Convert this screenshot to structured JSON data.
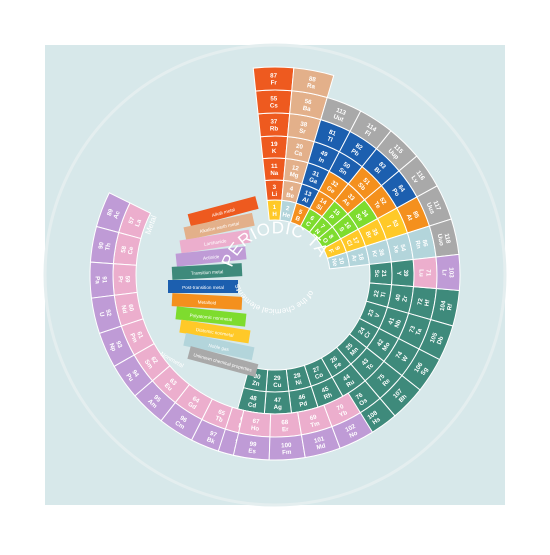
{
  "title": "PERIODIC TABLE",
  "subtitle": "of the chemical elements",
  "colors": {
    "background": "#d7e8ea",
    "track": "#e4eeef",
    "alkali": "#ee5a1f",
    "alkaline_earth": "#e3b08a",
    "lanthanide": "#ecaecd",
    "actinide": "#bf9bd6",
    "transition": "#3e8a7b",
    "post_transition": "#1c5faf",
    "metalloid": "#f4901d",
    "nonmetal": "#7edc2e",
    "halogen": "#ffc928",
    "noble_gas": "#b3d5db",
    "unknown": "#a9a9a9",
    "hydrogen": "#ffc928"
  },
  "legend": {
    "metal_label": "Metal",
    "nonmetal_label": "Nonmetal",
    "items": [
      {
        "label": "Alkali metal",
        "cat": "alkali"
      },
      {
        "label": "Alkaline earth metal",
        "cat": "alkaline_earth"
      },
      {
        "label": "Lanthanide",
        "cat": "lanthanide"
      },
      {
        "label": "Actinide",
        "cat": "actinide"
      },
      {
        "label": "Transition metal",
        "cat": "transition"
      },
      {
        "label": "Post-transition metal",
        "cat": "post_transition"
      },
      {
        "label": "Metalloid",
        "cat": "metalloid"
      },
      {
        "label": "Polyatomic nonmetal",
        "cat": "nonmetal"
      },
      {
        "label": "Diatomic nonmetal",
        "cat": "halogen"
      },
      {
        "label": "Noble gas",
        "cat": "noble_gas"
      },
      {
        "label": "Unknown chemical properties",
        "cat": "unknown"
      }
    ]
  },
  "elements": [
    {
      "n": 1,
      "s": "H",
      "cat": "hydrogen",
      "ring": 0,
      "slot": 0
    },
    {
      "n": 2,
      "s": "He",
      "cat": "noble_gas",
      "ring": 0,
      "slot": 1
    },
    {
      "n": 5,
      "s": "B",
      "cat": "metalloid",
      "ring": 0,
      "slot": 2
    },
    {
      "n": 6,
      "s": "C",
      "cat": "nonmetal",
      "ring": 0,
      "slot": 3
    },
    {
      "n": 7,
      "s": "N",
      "cat": "nonmetal",
      "ring": 0,
      "slot": 4
    },
    {
      "n": 8,
      "s": "O",
      "cat": "nonmetal",
      "ring": 0,
      "slot": 5
    },
    {
      "n": 9,
      "s": "F",
      "cat": "halogen",
      "ring": 0,
      "slot": 6
    },
    {
      "n": 10,
      "s": "Ne",
      "cat": "noble_gas",
      "ring": 0,
      "slot": 7
    },
    {
      "n": 3,
      "s": "Li",
      "cat": "alkali",
      "ring": 1,
      "slot": 0
    },
    {
      "n": 4,
      "s": "Be",
      "cat": "alkaline_earth",
      "ring": 1,
      "slot": 1
    },
    {
      "n": 13,
      "s": "Al",
      "cat": "post_transition",
      "ring": 1,
      "slot": 2
    },
    {
      "n": 14,
      "s": "Si",
      "cat": "metalloid",
      "ring": 1,
      "slot": 3
    },
    {
      "n": 15,
      "s": "P",
      "cat": "nonmetal",
      "ring": 1,
      "slot": 4
    },
    {
      "n": 16,
      "s": "S",
      "cat": "nonmetal",
      "ring": 1,
      "slot": 5
    },
    {
      "n": 17,
      "s": "Cl",
      "cat": "halogen",
      "ring": 1,
      "slot": 6
    },
    {
      "n": 18,
      "s": "Ar",
      "cat": "noble_gas",
      "ring": 1,
      "slot": 7
    },
    {
      "n": 11,
      "s": "Na",
      "cat": "alkali",
      "ring": 2,
      "slot": 0
    },
    {
      "n": 12,
      "s": "Mg",
      "cat": "alkaline_earth",
      "ring": 2,
      "slot": 1
    },
    {
      "n": 31,
      "s": "Ga",
      "cat": "post_transition",
      "ring": 2,
      "slot": 2
    },
    {
      "n": 32,
      "s": "Ge",
      "cat": "metalloid",
      "ring": 2,
      "slot": 3
    },
    {
      "n": 33,
      "s": "As",
      "cat": "metalloid",
      "ring": 2,
      "slot": 4
    },
    {
      "n": 34,
      "s": "Se",
      "cat": "nonmetal",
      "ring": 2,
      "slot": 5
    },
    {
      "n": 35,
      "s": "Br",
      "cat": "halogen",
      "ring": 2,
      "slot": 6
    },
    {
      "n": 36,
      "s": "Kr",
      "cat": "noble_gas",
      "ring": 2,
      "slot": 7
    },
    {
      "n": 19,
      "s": "K",
      "cat": "alkali",
      "ring": 3,
      "slot": 0
    },
    {
      "n": 20,
      "s": "Ca",
      "cat": "alkaline_earth",
      "ring": 3,
      "slot": 1
    },
    {
      "n": 49,
      "s": "In",
      "cat": "post_transition",
      "ring": 3,
      "slot": 2
    },
    {
      "n": 50,
      "s": "Sn",
      "cat": "post_transition",
      "ring": 3,
      "slot": 3
    },
    {
      "n": 51,
      "s": "Sb",
      "cat": "metalloid",
      "ring": 3,
      "slot": 4
    },
    {
      "n": 52,
      "s": "Te",
      "cat": "metalloid",
      "ring": 3,
      "slot": 5
    },
    {
      "n": 53,
      "s": "I",
      "cat": "halogen",
      "ring": 3,
      "slot": 6
    },
    {
      "n": 54,
      "s": "Xe",
      "cat": "noble_gas",
      "ring": 3,
      "slot": 7
    },
    {
      "n": 37,
      "s": "Rb",
      "cat": "alkali",
      "ring": 4,
      "slot": 0
    },
    {
      "n": 38,
      "s": "Sr",
      "cat": "alkaline_earth",
      "ring": 4,
      "slot": 1
    },
    {
      "n": 81,
      "s": "Tl",
      "cat": "post_transition",
      "ring": 4,
      "slot": 2
    },
    {
      "n": 82,
      "s": "Pb",
      "cat": "post_transition",
      "ring": 4,
      "slot": 3
    },
    {
      "n": 83,
      "s": "Bi",
      "cat": "post_transition",
      "ring": 4,
      "slot": 4
    },
    {
      "n": 84,
      "s": "Po",
      "cat": "post_transition",
      "ring": 4,
      "slot": 5
    },
    {
      "n": 85,
      "s": "At",
      "cat": "metalloid",
      "ring": 4,
      "slot": 6
    },
    {
      "n": 86,
      "s": "Rn",
      "cat": "noble_gas",
      "ring": 4,
      "slot": 7
    },
    {
      "n": 55,
      "s": "Cs",
      "cat": "alkali",
      "ring": 5,
      "slot": 0
    },
    {
      "n": 56,
      "s": "Ba",
      "cat": "alkaline_earth",
      "ring": 5,
      "slot": 1
    },
    {
      "n": 113,
      "s": "Uut",
      "cat": "unknown",
      "ring": 5,
      "slot": 2
    },
    {
      "n": 114,
      "s": "Fl",
      "cat": "unknown",
      "ring": 5,
      "slot": 3
    },
    {
      "n": 115,
      "s": "Uup",
      "cat": "unknown",
      "ring": 5,
      "slot": 4
    },
    {
      "n": 116,
      "s": "Lv",
      "cat": "unknown",
      "ring": 5,
      "slot": 5
    },
    {
      "n": 117,
      "s": "Uus",
      "cat": "unknown",
      "ring": 5,
      "slot": 6
    },
    {
      "n": 118,
      "s": "Uuo",
      "cat": "unknown",
      "ring": 5,
      "slot": 7
    },
    {
      "n": 87,
      "s": "Fr",
      "cat": "alkali",
      "ring": 6,
      "slot": 0
    },
    {
      "n": 88,
      "s": "Ra",
      "cat": "alkaline_earth",
      "ring": 6,
      "slot": 1
    },
    {
      "n": 21,
      "s": "Sc",
      "cat": "transition",
      "ring": 2,
      "slot": 8
    },
    {
      "n": 22,
      "s": "Ti",
      "cat": "transition",
      "ring": 2,
      "slot": 9
    },
    {
      "n": 23,
      "s": "V",
      "cat": "transition",
      "ring": 2,
      "slot": 10
    },
    {
      "n": 24,
      "s": "Cr",
      "cat": "transition",
      "ring": 2,
      "slot": 11
    },
    {
      "n": 25,
      "s": "Mn",
      "cat": "transition",
      "ring": 2,
      "slot": 12
    },
    {
      "n": 26,
      "s": "Fe",
      "cat": "transition",
      "ring": 2,
      "slot": 13
    },
    {
      "n": 27,
      "s": "Co",
      "cat": "transition",
      "ring": 2,
      "slot": 14
    },
    {
      "n": 28,
      "s": "Ni",
      "cat": "transition",
      "ring": 2,
      "slot": 15
    },
    {
      "n": 29,
      "s": "Cu",
      "cat": "transition",
      "ring": 2,
      "slot": 16
    },
    {
      "n": 30,
      "s": "Zn",
      "cat": "transition",
      "ring": 2,
      "slot": 17
    },
    {
      "n": 39,
      "s": "Y",
      "cat": "transition",
      "ring": 3,
      "slot": 8
    },
    {
      "n": 40,
      "s": "Zr",
      "cat": "transition",
      "ring": 3,
      "slot": 9
    },
    {
      "n": 41,
      "s": "Nb",
      "cat": "transition",
      "ring": 3,
      "slot": 10
    },
    {
      "n": 42,
      "s": "Mo",
      "cat": "transition",
      "ring": 3,
      "slot": 11
    },
    {
      "n": 43,
      "s": "Tc",
      "cat": "transition",
      "ring": 3,
      "slot": 12
    },
    {
      "n": 44,
      "s": "Ru",
      "cat": "transition",
      "ring": 3,
      "slot": 13
    },
    {
      "n": 45,
      "s": "Rh",
      "cat": "transition",
      "ring": 3,
      "slot": 14
    },
    {
      "n": 46,
      "s": "Pd",
      "cat": "transition",
      "ring": 3,
      "slot": 15
    },
    {
      "n": 47,
      "s": "Ag",
      "cat": "transition",
      "ring": 3,
      "slot": 16
    },
    {
      "n": 48,
      "s": "Cd",
      "cat": "transition",
      "ring": 3,
      "slot": 17
    },
    {
      "n": 72,
      "s": "Hf",
      "cat": "transition",
      "ring": 4,
      "slot": 9
    },
    {
      "n": 73,
      "s": "Ta",
      "cat": "transition",
      "ring": 4,
      "slot": 10
    },
    {
      "n": 74,
      "s": "W",
      "cat": "transition",
      "ring": 4,
      "slot": 11
    },
    {
      "n": 75,
      "s": "Re",
      "cat": "transition",
      "ring": 4,
      "slot": 12
    },
    {
      "n": 76,
      "s": "Os",
      "cat": "transition",
      "ring": 4,
      "slot": 13
    },
    {
      "n": 77,
      "s": "Ir",
      "cat": "transition",
      "ring": 4,
      "slot": 14
    },
    {
      "n": 78,
      "s": "Pt",
      "cat": "transition",
      "ring": 4,
      "slot": 15
    },
    {
      "n": 79,
      "s": "Au",
      "cat": "transition",
      "ring": 4,
      "slot": 16
    },
    {
      "n": 80,
      "s": "Hg",
      "cat": "transition",
      "ring": 4,
      "slot": 17
    },
    {
      "n": 71,
      "s": "Lu",
      "cat": "lanthanide",
      "ring": 4,
      "slot": 8
    },
    {
      "n": 104,
      "s": "Rf",
      "cat": "transition",
      "ring": 5,
      "slot": 9
    },
    {
      "n": 105,
      "s": "Db",
      "cat": "transition",
      "ring": 5,
      "slot": 10
    },
    {
      "n": 106,
      "s": "Sg",
      "cat": "transition",
      "ring": 5,
      "slot": 11
    },
    {
      "n": 107,
      "s": "Bh",
      "cat": "transition",
      "ring": 5,
      "slot": 12
    },
    {
      "n": 108,
      "s": "Hs",
      "cat": "transition",
      "ring": 5,
      "slot": 13
    },
    {
      "n": 109,
      "s": "Mt",
      "cat": "unknown",
      "ring": 5,
      "slot": 14
    },
    {
      "n": 110,
      "s": "Ds",
      "cat": "unknown",
      "ring": 5,
      "slot": 15
    },
    {
      "n": 111,
      "s": "Rg",
      "cat": "unknown",
      "ring": 5,
      "slot": 16
    },
    {
      "n": 112,
      "s": "Cn",
      "cat": "transition",
      "ring": 5,
      "slot": 17
    },
    {
      "n": 103,
      "s": "Lr",
      "cat": "actinide",
      "ring": 5,
      "slot": 8
    },
    {
      "n": 57,
      "s": "La",
      "cat": "lanthanide",
      "ring": 4,
      "slot": 26
    },
    {
      "n": 58,
      "s": "Ce",
      "cat": "lanthanide",
      "ring": 4,
      "slot": 25
    },
    {
      "n": 59,
      "s": "Pr",
      "cat": "lanthanide",
      "ring": 4,
      "slot": 24
    },
    {
      "n": 60,
      "s": "Nd",
      "cat": "lanthanide",
      "ring": 4,
      "slot": 23
    },
    {
      "n": 61,
      "s": "Pm",
      "cat": "lanthanide",
      "ring": 4,
      "slot": 22
    },
    {
      "n": 62,
      "s": "Sm",
      "cat": "lanthanide",
      "ring": 4,
      "slot": 21
    },
    {
      "n": 63,
      "s": "Eu",
      "cat": "lanthanide",
      "ring": 4,
      "slot": 20
    },
    {
      "n": 64,
      "s": "Gd",
      "cat": "lanthanide",
      "ring": 4,
      "slot": 19
    },
    {
      "n": 65,
      "s": "Tb",
      "cat": "lanthanide",
      "ring": 4,
      "slot": 18
    },
    {
      "n": 66,
      "s": "Dy",
      "cat": "lanthanide",
      "ring": 4,
      "slot": 17.2
    },
    {
      "n": 89,
      "s": "Ac",
      "cat": "actinide",
      "ring": 5,
      "slot": 26
    },
    {
      "n": 90,
      "s": "Th",
      "cat": "actinide",
      "ring": 5,
      "slot": 25
    },
    {
      "n": 91,
      "s": "Pa",
      "cat": "actinide",
      "ring": 5,
      "slot": 24
    },
    {
      "n": 92,
      "s": "U",
      "cat": "actinide",
      "ring": 5,
      "slot": 23
    },
    {
      "n": 93,
      "s": "Np",
      "cat": "actinide",
      "ring": 5,
      "slot": 22
    },
    {
      "n": 94,
      "s": "Pu",
      "cat": "actinide",
      "ring": 5,
      "slot": 21
    },
    {
      "n": 95,
      "s": "Am",
      "cat": "actinide",
      "ring": 5,
      "slot": 20
    },
    {
      "n": 96,
      "s": "Cm",
      "cat": "actinide",
      "ring": 5,
      "slot": 19
    },
    {
      "n": 97,
      "s": "Bk",
      "cat": "actinide",
      "ring": 5,
      "slot": 18
    },
    {
      "n": 98,
      "s": "Cf",
      "cat": "actinide",
      "ring": 5,
      "slot": 17.2
    }
  ],
  "outer_lower": [
    {
      "n": 67,
      "s": "Ho",
      "cat": "lanthanide"
    },
    {
      "n": 68,
      "s": "Er",
      "cat": "lanthanide"
    },
    {
      "n": 69,
      "s": "Tm",
      "cat": "lanthanide"
    },
    {
      "n": 70,
      "s": "Yb",
      "cat": "lanthanide"
    },
    {
      "n": 99,
      "s": "Es",
      "cat": "actinide"
    },
    {
      "n": 100,
      "s": "Fm",
      "cat": "actinide"
    },
    {
      "n": 101,
      "s": "Md",
      "cat": "actinide"
    },
    {
      "n": 102,
      "s": "No",
      "cat": "actinide"
    }
  ]
}
